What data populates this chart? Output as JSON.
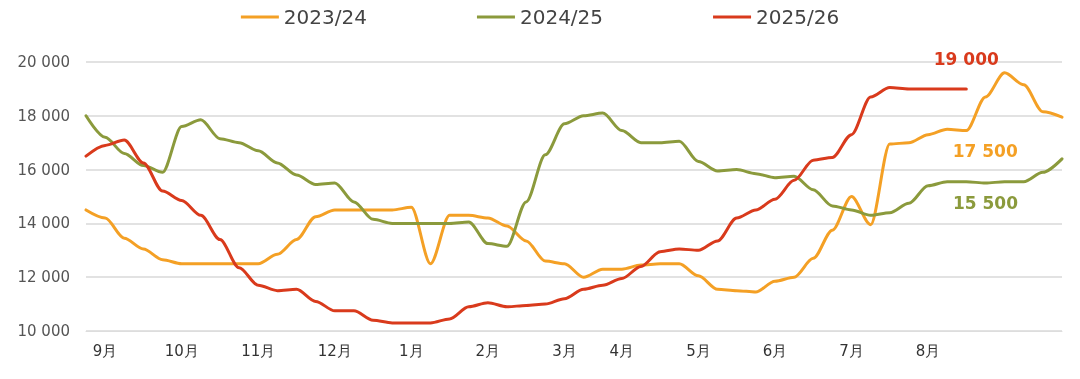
{
  "chart_data": {
    "type": "line",
    "legend": "top",
    "grid": "y",
    "marker": "none",
    "line_style": "solid",
    "categories": [
      null,
      "9月",
      null,
      null,
      null,
      "10月",
      null,
      null,
      null,
      "11月",
      null,
      null,
      null,
      "12月",
      null,
      null,
      null,
      "1月",
      null,
      null,
      null,
      "2月",
      null,
      null,
      null,
      "3月",
      null,
      null,
      "4月",
      null,
      null,
      null,
      "5月",
      null,
      null,
      null,
      "6月",
      null,
      null,
      null,
      "7月",
      null,
      null,
      null,
      "8月",
      null,
      null,
      null,
      null,
      null,
      null,
      null
    ],
    "ylim": [
      10000,
      20000
    ],
    "yticks": [
      {
        "value": 10000,
        "label": "10 000"
      },
      {
        "value": 12000,
        "label": "12 000"
      },
      {
        "value": 14000,
        "label": "14 000"
      },
      {
        "value": 16000,
        "label": "16 000"
      },
      {
        "value": 18000,
        "label": "18 000"
      },
      {
        "value": 20000,
        "label": "20 000"
      }
    ],
    "series": [
      {
        "name": "2023/24",
        "color": "#f4a025",
        "values": [
          14500,
          14200,
          13450,
          13050,
          12650,
          12500,
          12500,
          12500,
          12500,
          12500,
          12850,
          13400,
          14250,
          14500,
          14500,
          14500,
          14500,
          14600,
          12500,
          14300,
          14300,
          14200,
          13900,
          13350,
          12600,
          12500,
          12000,
          12300,
          12300,
          12450,
          12500,
          12500,
          12050,
          11550,
          11500,
          11450,
          11850,
          12000,
          12700,
          13750,
          15000,
          13950,
          16950,
          17000,
          17300,
          17500,
          17450,
          18700,
          19600,
          19150,
          18150,
          17950
        ],
        "value_labels": [
          null,
          null,
          null,
          null,
          null,
          null,
          null,
          null,
          null,
          null,
          null,
          null,
          null,
          null,
          null,
          null,
          null,
          null,
          null,
          null,
          null,
          null,
          null,
          null,
          null,
          null,
          null,
          null,
          null,
          null,
          null,
          null,
          null,
          null,
          null,
          null,
          null,
          null,
          null,
          null,
          null,
          null,
          null,
          null,
          null,
          "17 500",
          null,
          null,
          null,
          null,
          null,
          null
        ]
      },
      {
        "name": "2024/25",
        "color": "#8b9a3c",
        "values": [
          18000,
          17200,
          16600,
          16150,
          15900,
          17600,
          17850,
          17150,
          17000,
          16700,
          16250,
          15800,
          15450,
          15500,
          14800,
          14150,
          14000,
          14000,
          14000,
          14000,
          14050,
          13250,
          13150,
          14800,
          16550,
          17700,
          18000,
          18100,
          17450,
          17000,
          17000,
          17050,
          16300,
          15950,
          16000,
          15850,
          15700,
          15750,
          15250,
          14650,
          14500,
          14300,
          14400,
          14750,
          15400,
          15550,
          15550,
          15500,
          15550,
          15550,
          15900,
          16400
        ],
        "value_labels": [
          null,
          null,
          null,
          null,
          null,
          null,
          null,
          null,
          null,
          null,
          null,
          null,
          null,
          null,
          null,
          null,
          null,
          null,
          null,
          null,
          null,
          null,
          null,
          null,
          null,
          null,
          null,
          null,
          null,
          null,
          null,
          null,
          null,
          null,
          null,
          null,
          null,
          null,
          null,
          null,
          null,
          null,
          null,
          null,
          null,
          null,
          null,
          "15 500",
          null,
          null,
          null,
          null
        ]
      },
      {
        "name": "2025/26",
        "color": "#d93a1c",
        "values": [
          16500,
          16900,
          17100,
          16250,
          15200,
          14850,
          14300,
          13400,
          12350,
          11700,
          11500,
          11550,
          11100,
          10750,
          10750,
          10400,
          10300,
          10300,
          10300,
          10450,
          10900,
          11050,
          10900,
          10950,
          11000,
          11200,
          11550,
          11700,
          11950,
          12400,
          12950,
          13050,
          13000,
          13350,
          14200,
          14500,
          14900,
          15600,
          16350,
          16450,
          17300,
          18700,
          19050,
          19000,
          19000,
          19000,
          19000,
          null,
          null,
          null,
          null,
          null
        ],
        "value_labels": [
          null,
          null,
          null,
          null,
          null,
          null,
          null,
          null,
          null,
          null,
          null,
          null,
          null,
          null,
          null,
          null,
          null,
          null,
          null,
          null,
          null,
          null,
          null,
          null,
          null,
          null,
          null,
          null,
          null,
          null,
          null,
          null,
          null,
          null,
          null,
          null,
          null,
          null,
          null,
          null,
          null,
          null,
          null,
          null,
          null,
          null,
          "19 000",
          null,
          null,
          null,
          null,
          null
        ]
      }
    ]
  }
}
